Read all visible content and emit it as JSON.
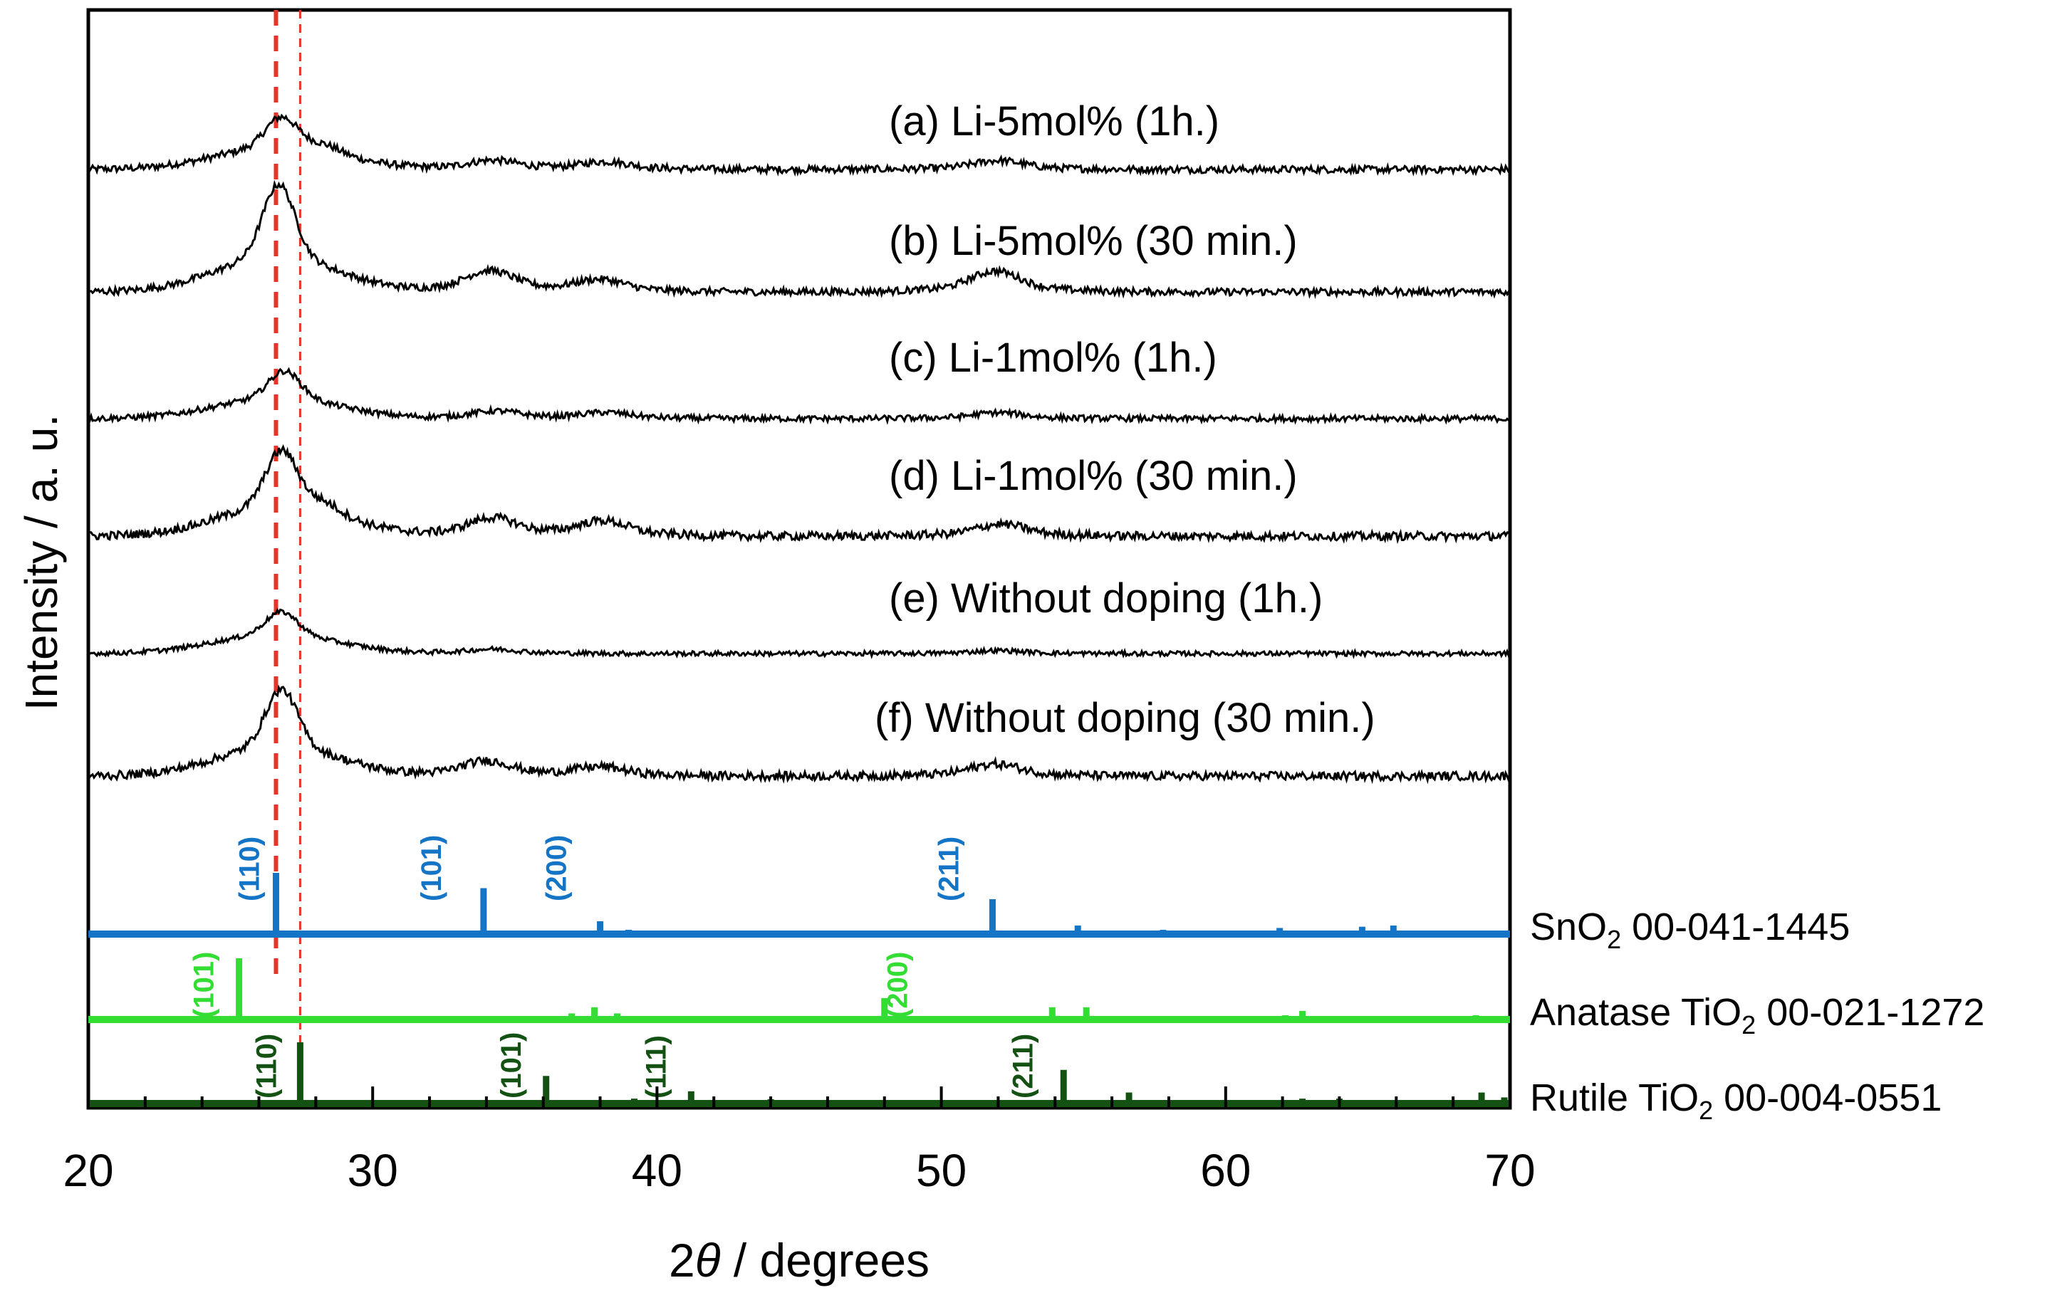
{
  "chart_data": {
    "type": "line",
    "title": "",
    "xlabel_prefix": "2",
    "xlabel_theta": "θ",
    "xlabel_suffix": " / degrees",
    "ylabel": "Intensity / a. u.",
    "xlim": [
      20,
      70
    ],
    "x_ticks": [
      "20",
      "30",
      "40",
      "50",
      "60",
      "70"
    ],
    "grid": false,
    "reference_lines": [
      {
        "x": 26.6,
        "style": "thick dashed",
        "color": "#e8332a"
      },
      {
        "x": 27.45,
        "style": "thin dashed",
        "color": "#e8332a"
      }
    ],
    "series": [
      {
        "name": "(a)  Li-5mol%  (1h.)",
        "peaks": [
          [
            26.8,
            0.13
          ],
          [
            28.3,
            0.03
          ],
          [
            34.2,
            0.03
          ],
          [
            38.2,
            0.025
          ],
          [
            52.0,
            0.03
          ]
        ],
        "baseline": [
          0.22,
          0.44
        ],
        "noise": 0.012
      },
      {
        "name": "(b) Li-5mol%  (30 min.)",
        "peaks": [
          [
            26.7,
            0.32
          ],
          [
            34.1,
            0.07
          ],
          [
            38.0,
            0.04
          ],
          [
            51.9,
            0.07
          ]
        ],
        "baseline": [
          0.42,
          0.66
        ],
        "noise": 0.012
      },
      {
        "name": "(c) Li-1mol%  (1h.)",
        "peaks": [
          [
            26.9,
            0.12
          ],
          [
            34.3,
            0.025
          ],
          [
            38.2,
            0.02
          ],
          [
            52.0,
            0.02
          ]
        ],
        "baseline": [
          0.66,
          0.84
        ],
        "noise": 0.01
      },
      {
        "name": "(d) Li-1mol%  (30 min.)",
        "peaks": [
          [
            26.8,
            0.24
          ],
          [
            28.3,
            0.04
          ],
          [
            34.2,
            0.06
          ],
          [
            38.1,
            0.05
          ],
          [
            52.1,
            0.04
          ]
        ],
        "baseline": [
          0.8,
          1.0
        ],
        "noise": 0.014
      },
      {
        "name": "(e) Without doping  (1h.)",
        "peaks": [
          [
            26.8,
            0.1
          ],
          [
            34.2,
            0.015
          ],
          [
            52.0,
            0.01
          ]
        ],
        "baseline": [
          0.9,
          1.0
        ],
        "noise": 0.008
      },
      {
        "name": "(f) Without doping (30 min.)",
        "peaks": [
          [
            26.8,
            0.25
          ],
          [
            34.0,
            0.05
          ],
          [
            38.0,
            0.03
          ],
          [
            51.9,
            0.04
          ]
        ],
        "baseline": [
          0.96,
          1.18
        ],
        "noise": 0.014
      }
    ],
    "references": [
      {
        "name": "SnO",
        "sub": "2",
        "code": " 00-041-1445",
        "color": "#1474c6",
        "sticks": [
          [
            26.6,
            100
          ],
          [
            33.9,
            75
          ],
          [
            38.0,
            21
          ],
          [
            39.0,
            4
          ],
          [
            51.8,
            57
          ],
          [
            54.8,
            14
          ],
          [
            57.8,
            5
          ],
          [
            61.9,
            10
          ],
          [
            64.8,
            12
          ],
          [
            65.9,
            14
          ]
        ],
        "labels": [
          {
            "hkl": "(110)",
            "x": 26.0
          },
          {
            "hkl": "(101)",
            "x": 32.4
          },
          {
            "hkl": "(200)",
            "x": 36.8
          },
          {
            "hkl": "(211)",
            "x": 50.6
          }
        ]
      },
      {
        "name": "Anatase TiO",
        "sub": "2",
        "code": " 00-021-1272",
        "color": "#33dd33",
        "sticks": [
          [
            25.3,
            100
          ],
          [
            37.0,
            10
          ],
          [
            37.8,
            20
          ],
          [
            38.6,
            10
          ],
          [
            48.0,
            35
          ],
          [
            53.9,
            20
          ],
          [
            55.1,
            20
          ],
          [
            62.1,
            4
          ],
          [
            62.7,
            14
          ],
          [
            68.8,
            6
          ],
          [
            70.3,
            6
          ]
        ],
        "labels": [
          {
            "hkl": "(101)",
            "x": 24.4
          },
          {
            "hkl": "(200)",
            "x": 48.8
          }
        ]
      },
      {
        "name": "Rutile TiO",
        "sub": "2",
        "code": " 00-004-0551",
        "color": "#145214",
        "sticks": [
          [
            27.45,
            100
          ],
          [
            36.1,
            45
          ],
          [
            39.2,
            8
          ],
          [
            41.2,
            20
          ],
          [
            44.0,
            7
          ],
          [
            54.3,
            55
          ],
          [
            56.6,
            18
          ],
          [
            62.7,
            8
          ],
          [
            64.0,
            8
          ],
          [
            69.0,
            18
          ],
          [
            69.8,
            10
          ]
        ],
        "labels": [
          {
            "hkl": "(110)",
            "x": 26.6
          },
          {
            "hkl": "(101)",
            "x": 35.2
          },
          {
            "hkl": "(111)",
            "x": 40.3
          },
          {
            "hkl": "(211)",
            "x": 53.2
          }
        ]
      }
    ]
  }
}
